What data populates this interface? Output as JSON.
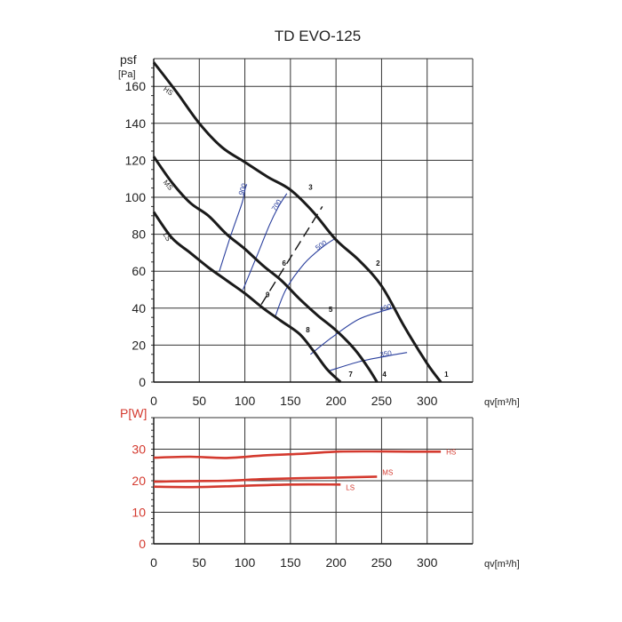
{
  "colors": {
    "curve": "#1a1a1a",
    "rpm": "#2a3f9d",
    "power": "#d43a2f",
    "grid": "#333333"
  },
  "chart_data": [
    {
      "type": "line",
      "title": "TD EVO-125",
      "ylabel": "psf",
      "ylabel_unit": "[Pa]",
      "xlabel": "qv[m³/h]",
      "xlim": [
        0,
        350
      ],
      "ylim": [
        0,
        175
      ],
      "xticks": [
        0,
        50,
        100,
        150,
        200,
        250,
        300
      ],
      "yticks": [
        0,
        20,
        40,
        60,
        80,
        100,
        120,
        140,
        160
      ],
      "grid": true,
      "series": [
        {
          "name": "HS",
          "points": [
            [
              0,
              173
            ],
            [
              25,
              157
            ],
            [
              50,
              140
            ],
            [
              75,
              127
            ],
            [
              100,
              119
            ],
            [
              125,
              111
            ],
            [
              150,
              104
            ],
            [
              175,
              92
            ],
            [
              200,
              77
            ],
            [
              225,
              66
            ],
            [
              250,
              52
            ],
            [
              275,
              30
            ],
            [
              300,
              10
            ],
            [
              315,
              0
            ]
          ]
        },
        {
          "name": "MS",
          "points": [
            [
              0,
              122
            ],
            [
              20,
              108
            ],
            [
              40,
              97
            ],
            [
              60,
              90
            ],
            [
              80,
              80
            ],
            [
              100,
              72
            ],
            [
              120,
              63
            ],
            [
              140,
              55
            ],
            [
              160,
              45
            ],
            [
              180,
              36
            ],
            [
              200,
              28
            ],
            [
              220,
              18
            ],
            [
              235,
              8
            ],
            [
              245,
              0
            ]
          ]
        },
        {
          "name": "LS",
          "points": [
            [
              0,
              92
            ],
            [
              20,
              78
            ],
            [
              40,
              70
            ],
            [
              60,
              62
            ],
            [
              80,
              55
            ],
            [
              100,
              48
            ],
            [
              120,
              40
            ],
            [
              140,
              33
            ],
            [
              160,
              26
            ],
            [
              175,
              17
            ],
            [
              190,
              7
            ],
            [
              205,
              0
            ]
          ]
        }
      ],
      "rpm_lines": [
        {
          "name": "900",
          "points": [
            [
              72,
              60
            ],
            [
              85,
              80
            ],
            [
              97,
              97
            ],
            [
              100,
              104
            ],
            [
              102,
              107
            ]
          ]
        },
        {
          "name": "700",
          "points": [
            [
              98,
              50
            ],
            [
              113,
              68
            ],
            [
              127,
              85
            ],
            [
              137,
              95
            ],
            [
              146,
              102
            ]
          ]
        },
        {
          "name": "500",
          "points": [
            [
              133,
              35
            ],
            [
              145,
              50
            ],
            [
              165,
              64
            ],
            [
              185,
              73
            ],
            [
              200,
              78
            ]
          ]
        },
        {
          "name": "400",
          "points": [
            [
              172,
              15
            ],
            [
              195,
              24
            ],
            [
              225,
              34
            ],
            [
              255,
              39
            ],
            [
              262,
              40
            ]
          ]
        },
        {
          "name": "350",
          "points": [
            [
              192,
              6
            ],
            [
              225,
              11
            ],
            [
              255,
              14
            ],
            [
              278,
              16
            ]
          ]
        }
      ],
      "system_line": {
        "points": [
          [
            118,
            42
          ],
          [
            185,
            95
          ]
        ]
      },
      "operating_points": [
        {
          "label": "1",
          "x": 315,
          "y": 3
        },
        {
          "label": "2",
          "x": 240,
          "y": 63
        },
        {
          "label": "3",
          "x": 166,
          "y": 104
        },
        {
          "label": "4",
          "x": 247,
          "y": 3
        },
        {
          "label": "5",
          "x": 188,
          "y": 38
        },
        {
          "label": "6",
          "x": 137,
          "y": 63
        },
        {
          "label": "7",
          "x": 210,
          "y": 3
        },
        {
          "label": "8",
          "x": 163,
          "y": 27
        },
        {
          "label": "9",
          "x": 119,
          "y": 46
        }
      ]
    },
    {
      "type": "line",
      "ylabel": "P[W]",
      "xlabel": "qv[m³/h]",
      "xlim": [
        0,
        350
      ],
      "ylim": [
        0,
        40
      ],
      "xticks": [
        0,
        50,
        100,
        150,
        200,
        250,
        300
      ],
      "yticks": [
        0,
        10,
        20,
        30
      ],
      "grid": true,
      "series": [
        {
          "name": "HS",
          "points": [
            [
              0,
              27.3
            ],
            [
              40,
              27.6
            ],
            [
              80,
              27.2
            ],
            [
              120,
              28
            ],
            [
              160,
              28.5
            ],
            [
              200,
              29.2
            ],
            [
              240,
              29.3
            ],
            [
              280,
              29.2
            ],
            [
              315,
              29.2
            ]
          ]
        },
        {
          "name": "MS",
          "points": [
            [
              0,
              19.7
            ],
            [
              40,
              19.9
            ],
            [
              80,
              20
            ],
            [
              120,
              20.5
            ],
            [
              160,
              20.8
            ],
            [
              200,
              21
            ],
            [
              245,
              21.3
            ]
          ]
        },
        {
          "name": "LS",
          "points": [
            [
              0,
              18.1
            ],
            [
              50,
              18.0
            ],
            [
              100,
              18.4
            ],
            [
              150,
              18.8
            ],
            [
              205,
              18.8
            ]
          ]
        }
      ]
    }
  ]
}
